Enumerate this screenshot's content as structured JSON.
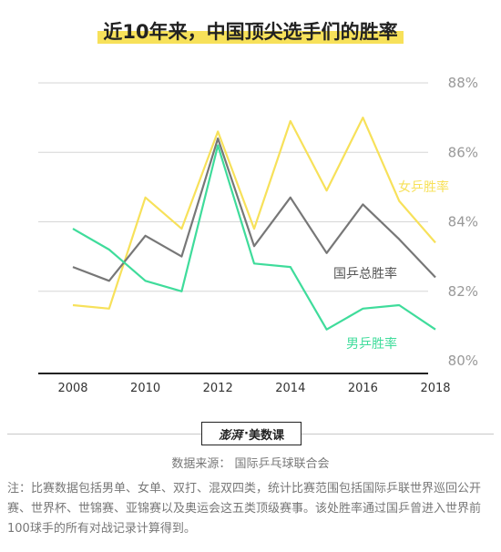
{
  "title": "近10年来，中国顶尖选手们的胜率",
  "logo": {
    "brand": "澎湃",
    "sub": "美数课"
  },
  "source": "数据来源：  国际乒乓球联合会",
  "note": "注：比赛数据包括男单、女单、双打、混双四类，统计比赛范围包括国际乒联世界巡回公开赛、世界杯、世锦赛、亚锦赛以及奥运会这五类顶级赛事。该处胜率通过国乒曾进入世界前100球手的所有对战记录计算得到。",
  "colors": {
    "women": "#f7e15a",
    "total": "#777777",
    "men": "#3fdc9b",
    "grid": "#d6d6d6",
    "axis": "#222222"
  },
  "chart_data": {
    "type": "line",
    "x": [
      2008,
      2009,
      2010,
      2011,
      2012,
      2013,
      2014,
      2015,
      2016,
      2017,
      2018
    ],
    "x_ticks": [
      "2008",
      "2010",
      "2012",
      "2014",
      "2016",
      "2018"
    ],
    "y_ticks": [
      "80%",
      "82%",
      "84%",
      "86%",
      "88%"
    ],
    "ylim": [
      80,
      88
    ],
    "series": [
      {
        "name": "女乒胜率",
        "key": "women",
        "values": [
          81.6,
          81.5,
          84.7,
          83.8,
          86.6,
          83.8,
          86.9,
          84.9,
          87.0,
          84.6,
          83.4
        ]
      },
      {
        "name": "国乒总胜率",
        "key": "total",
        "values": [
          82.7,
          82.3,
          83.6,
          83.0,
          86.4,
          83.3,
          84.7,
          83.1,
          84.5,
          83.5,
          82.4
        ]
      },
      {
        "name": "男乒胜率",
        "key": "men",
        "values": [
          83.8,
          83.2,
          82.3,
          82.0,
          86.2,
          82.8,
          82.7,
          80.9,
          81.5,
          81.6,
          80.9
        ]
      }
    ]
  }
}
